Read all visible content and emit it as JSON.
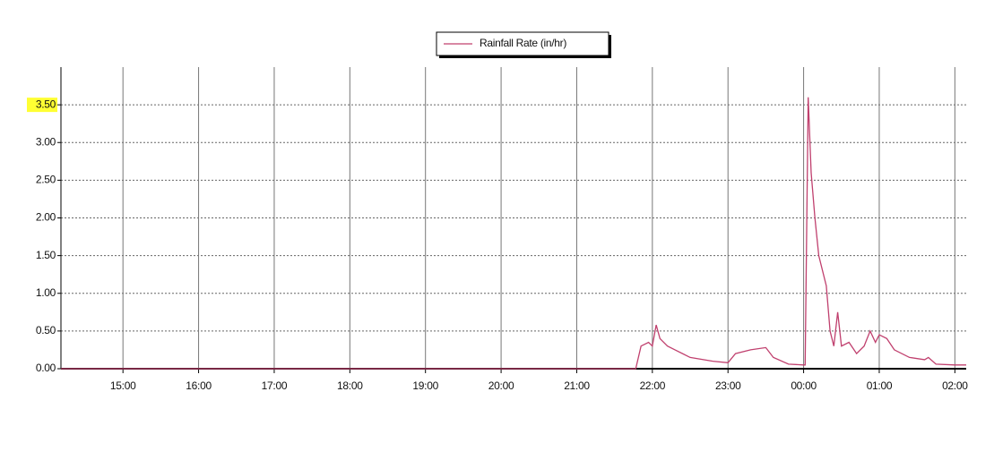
{
  "chart_data": {
    "type": "line",
    "legend": "top-center",
    "series": [
      {
        "name": "Rainfall Rate (in/hr)",
        "color": "#c0406e",
        "x": [
          14.18,
          21.78,
          21.85,
          21.95,
          22.0,
          22.05,
          22.1,
          22.2,
          22.3,
          22.5,
          22.8,
          23.0,
          23.1,
          23.3,
          23.5,
          23.6,
          23.8,
          24.0,
          24.02,
          24.06,
          24.1,
          24.15,
          24.2,
          24.3,
          24.35,
          24.4,
          24.45,
          24.5,
          24.6,
          24.7,
          24.8,
          24.88,
          24.95,
          25.0,
          25.1,
          25.2,
          25.4,
          25.6,
          25.65,
          25.75,
          26.0,
          26.15
        ],
        "values": [
          0,
          0,
          0.3,
          0.35,
          0.3,
          0.58,
          0.4,
          0.3,
          0.25,
          0.15,
          0.1,
          0.08,
          0.2,
          0.25,
          0.28,
          0.15,
          0.06,
          0.05,
          0.05,
          3.6,
          2.6,
          2.0,
          1.5,
          1.1,
          0.5,
          0.3,
          0.75,
          0.3,
          0.35,
          0.2,
          0.3,
          0.5,
          0.35,
          0.45,
          0.4,
          0.25,
          0.15,
          0.12,
          0.15,
          0.06,
          0.05,
          0.05
        ]
      }
    ],
    "xlim": [
      14.18,
      26.15
    ],
    "xticks": [
      {
        "value": 15,
        "label": "15:00"
      },
      {
        "value": 16,
        "label": "16:00"
      },
      {
        "value": 17,
        "label": "17:00"
      },
      {
        "value": 18,
        "label": "18:00"
      },
      {
        "value": 19,
        "label": "19:00"
      },
      {
        "value": 20,
        "label": "20:00"
      },
      {
        "value": 21,
        "label": "21:00"
      },
      {
        "value": 22,
        "label": "22:00"
      },
      {
        "value": 23,
        "label": "23:00"
      },
      {
        "value": 24,
        "label": "00:00"
      },
      {
        "value": 25,
        "label": "01:00"
      },
      {
        "value": 26,
        "label": "02:00"
      }
    ],
    "ylim": [
      0,
      4.0
    ],
    "yticks": [
      {
        "value": 0,
        "label": "0.00"
      },
      {
        "value": 0.5,
        "label": "0.50"
      },
      {
        "value": 1,
        "label": "1.00"
      },
      {
        "value": 1.5,
        "label": "1.50"
      },
      {
        "value": 2,
        "label": "2.00"
      },
      {
        "value": 2.5,
        "label": "2.50"
      },
      {
        "value": 3,
        "label": "3.00"
      },
      {
        "value": 3.5,
        "label": "3.50"
      }
    ],
    "grid": true,
    "highlight": {
      "ytick": 3.5,
      "color": "#ffff33"
    }
  }
}
